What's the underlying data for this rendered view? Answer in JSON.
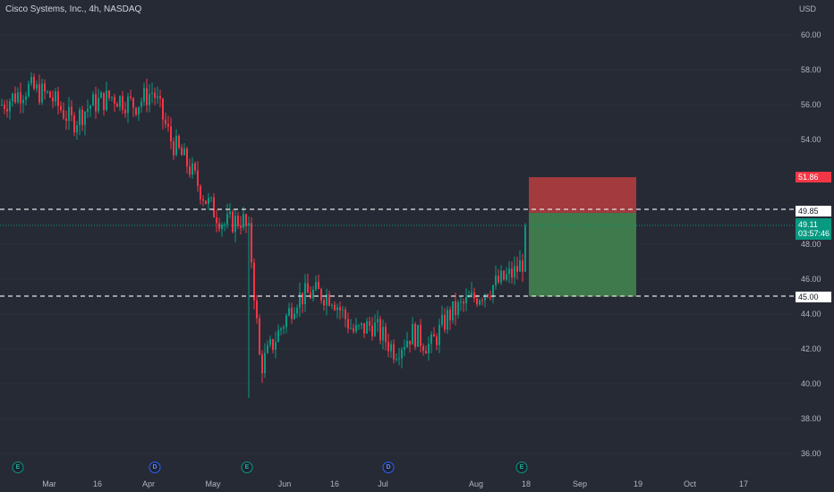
{
  "header": {
    "title": "Cisco Systems, Inc., 4h, NASDAQ",
    "currency": "USD"
  },
  "price_axis": {
    "ticks": [
      "60.00",
      "58.00",
      "56.00",
      "54.00",
      "48.00",
      "46.00",
      "44.00",
      "42.00",
      "40.00",
      "38.00",
      "36.00"
    ]
  },
  "time_axis": {
    "ticks": [
      "Mar",
      "16",
      "Apr",
      "May",
      "Jun",
      "16",
      "Jul",
      "Aug",
      "18",
      "Sep",
      "19",
      "Oct",
      "17"
    ]
  },
  "price_labels": {
    "stop_loss": "51.86",
    "entry": "49.85",
    "current_price": "49.11",
    "countdown": "03:57:46",
    "target": "45.00"
  },
  "events": [
    "E",
    "D",
    "E",
    "D",
    "E"
  ],
  "colors": {
    "background": "#262a35",
    "up": "#089981",
    "down": "#f23645",
    "stop_zone": "#a33a3e",
    "target_zone": "#3e7a4b",
    "text": "#d1d4dc"
  },
  "chart_data": {
    "type": "candlestick",
    "title": "Cisco Systems, Inc., 4h, NASDAQ",
    "ylabel": "USD",
    "ylim": [
      35.5,
      61
    ],
    "approx_series": {
      "name": "",
      "description_points": [
        [
          "Mar 1",
          56.5
        ],
        [
          "Mar 8",
          56.8
        ],
        [
          "Mar 16",
          55.8
        ],
        [
          "Mar 22",
          56.3
        ],
        [
          "Apr 1",
          56.2
        ],
        [
          "Apr 8",
          54.5
        ],
        [
          "Apr 16",
          51.5
        ],
        [
          "Apr 25",
          49.5
        ],
        [
          "May 1",
          49.0
        ],
        [
          "May 7",
          49.5
        ],
        [
          "May 15",
          48.3
        ],
        [
          "May 16",
          40.5
        ],
        [
          "May 22",
          43.5
        ],
        [
          "Jun 1",
          45.3
        ],
        [
          "Jun 8",
          45.2
        ],
        [
          "Jun 16",
          43.5
        ],
        [
          "Jun 25",
          43.8
        ],
        [
          "Jul 3",
          42.0
        ],
        [
          "Jul 10",
          43.0
        ],
        [
          "Jul 18",
          42.3
        ],
        [
          "Jul 25",
          43.8
        ],
        [
          "Aug 1",
          44.8
        ],
        [
          "Aug 8",
          45.6
        ],
        [
          "Aug 14",
          46.8
        ],
        [
          "Aug 16",
          47.2
        ],
        [
          "Aug 18",
          49.11
        ]
      ]
    },
    "position": {
      "type": "short",
      "entry": 49.85,
      "stop_loss": 51.86,
      "target": 45.0
    }
  }
}
